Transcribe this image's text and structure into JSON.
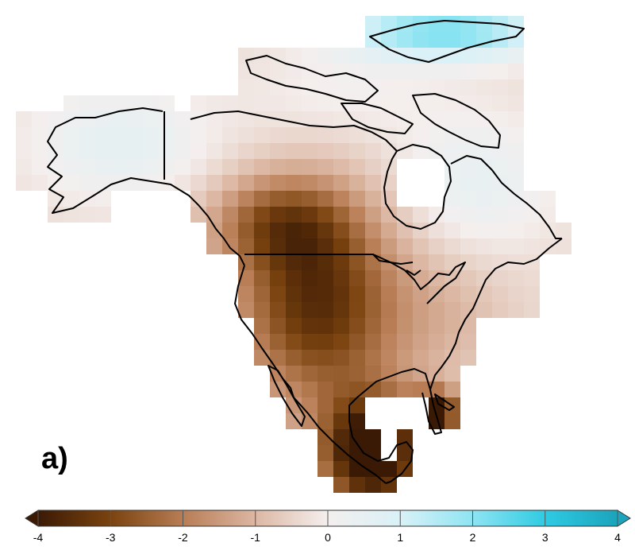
{
  "panel_label": "a)",
  "colorbar": {
    "min": -4,
    "max": 4,
    "tick_labels": [
      "-4",
      "-3",
      "-2",
      "-1",
      "0",
      "1",
      "2",
      "3",
      "4"
    ],
    "extend": "both",
    "colors": {
      "minus4": "#3b1a05",
      "minus3": "#7a430f",
      "minus2": "#b87d55",
      "minus1": "#dcb7a3",
      "zero": "#f4efee",
      "plus1": "#d9f1f7",
      "plus2": "#8ee4f2",
      "plus3": "#2fcbe3",
      "plus4": "#1ba4bb"
    }
  },
  "map_colors": {
    "coastline": "#000000",
    "no_data": "#ffffff"
  }
}
